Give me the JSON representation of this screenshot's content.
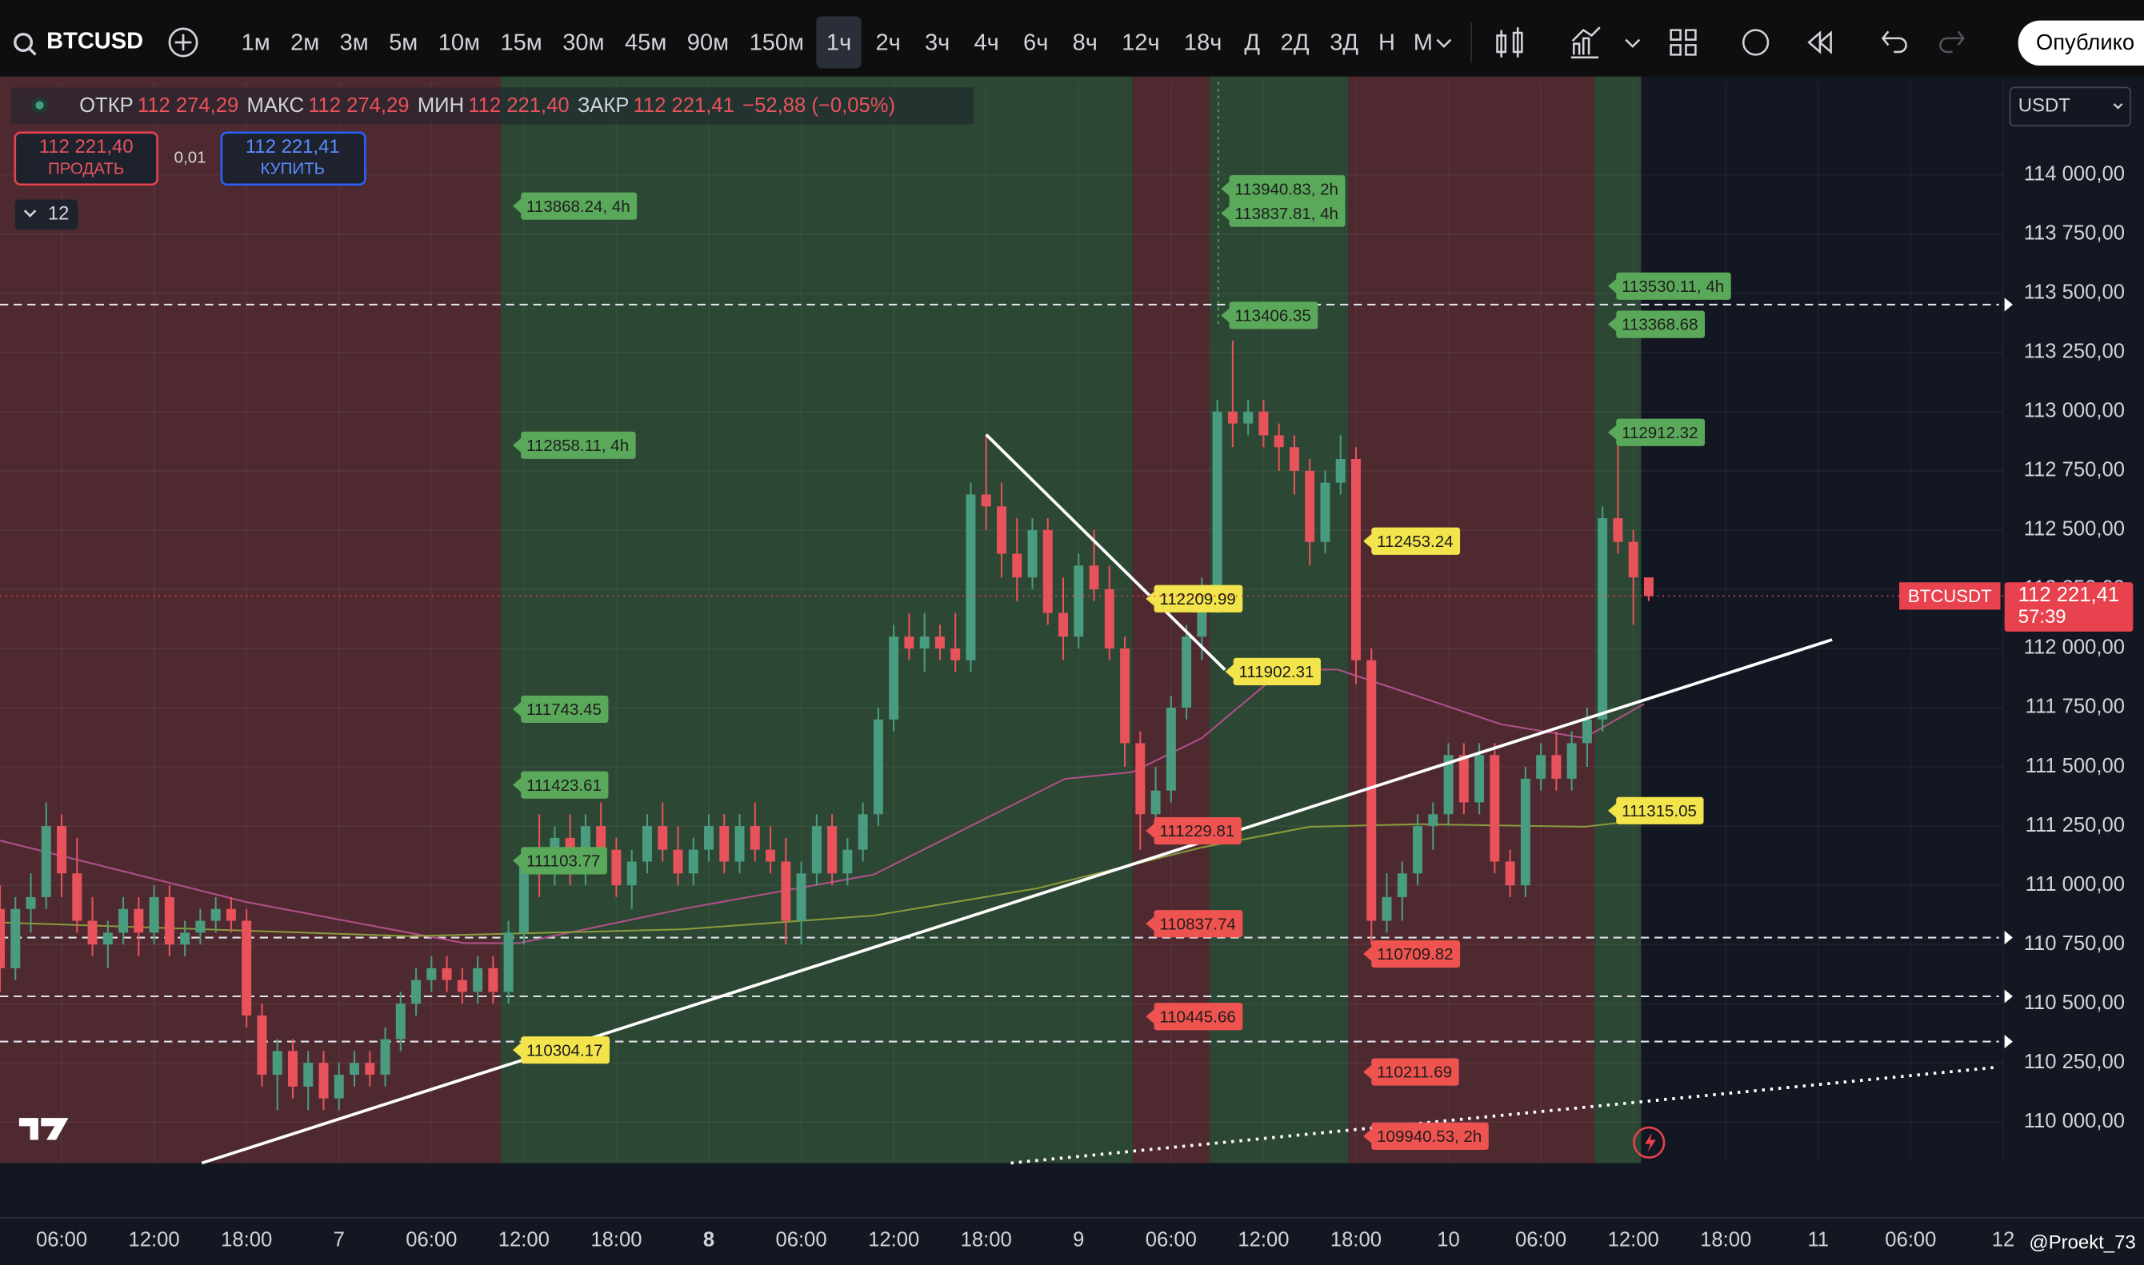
{
  "toolbar": {
    "symbol": "BTCUSD",
    "intervals": [
      "1м",
      "2м",
      "3м",
      "5м",
      "10м",
      "15м",
      "30м",
      "45м",
      "90м",
      "150м",
      "1ч",
      "2ч",
      "3ч",
      "4ч",
      "6ч",
      "8ч",
      "12ч",
      "18ч",
      "Д",
      "2Д",
      "3Д",
      "Н",
      "М"
    ],
    "selected": "1ч",
    "publish": "Опублико"
  },
  "legend": {
    "items": [
      {
        "label": "ОТКР",
        "value": "112 274,29"
      },
      {
        "label": "МАКС",
        "value": "112 274,29"
      },
      {
        "label": "МИН",
        "value": "112 221,40"
      },
      {
        "label": "ЗАКР",
        "value": "112 221,41"
      }
    ],
    "change": "−52,88 (−0,05%)",
    "sell_price": "112 221,40",
    "sell": "ПРОДАТЬ",
    "spread": "0,01",
    "buy_price": "112 221,41",
    "buy": "КУПИТЬ",
    "indicators_count": "12"
  },
  "currency": "USDT",
  "watermark": "@Proekt_73",
  "chart_data": {
    "type": "candlestick",
    "up_color": "#4a9c80",
    "down_color": "#e8525b",
    "xlim": [
      0,
      130
    ],
    "ylim": [
      109827,
      114392
    ],
    "grid": true,
    "yticks": [
      {
        "value": 110000,
        "label": "110 000,00"
      },
      {
        "value": 110250,
        "label": "110 250,00"
      },
      {
        "value": 110500,
        "label": "110 500,00"
      },
      {
        "value": 110750,
        "label": "110 750,00"
      },
      {
        "value": 111000,
        "label": "111 000,00"
      },
      {
        "value": 111250,
        "label": "111 250,00"
      },
      {
        "value": 111500,
        "label": "111 500,00"
      },
      {
        "value": 111750,
        "label": "111 750,00"
      },
      {
        "value": 112000,
        "label": "112 000,00"
      },
      {
        "value": 112250,
        "label": "112 250,00"
      },
      {
        "value": 112500,
        "label": "112 500,00"
      },
      {
        "value": 112750,
        "label": "112 750,00"
      },
      {
        "value": 113000,
        "label": "113 000,00"
      },
      {
        "value": 113250,
        "label": "113 250,00"
      },
      {
        "value": 113500,
        "label": "113 500,00"
      },
      {
        "value": 113750,
        "label": "113 750,00"
      },
      {
        "value": 114000,
        "label": "114 000,00"
      }
    ],
    "xticks": [
      {
        "value": 4,
        "label": "06:00"
      },
      {
        "value": 10,
        "label": "12:00"
      },
      {
        "value": 16,
        "label": "18:00"
      },
      {
        "value": 22,
        "label": "7"
      },
      {
        "value": 28,
        "label": "06:00"
      },
      {
        "value": 34,
        "label": "12:00"
      },
      {
        "value": 40,
        "label": "18:00"
      },
      {
        "value": 46,
        "label": "8"
      },
      {
        "value": 52,
        "label": "06:00"
      },
      {
        "value": 58,
        "label": "12:00"
      },
      {
        "value": 64,
        "label": "18:00"
      },
      {
        "value": 70,
        "label": "9"
      },
      {
        "value": 76,
        "label": "06:00"
      },
      {
        "value": 82,
        "label": "12:00"
      },
      {
        "value": 88,
        "label": "18:00"
      },
      {
        "value": 94,
        "label": "10"
      },
      {
        "value": 100,
        "label": "06:00"
      },
      {
        "value": 106,
        "label": "12:00"
      },
      {
        "value": 112,
        "label": "18:00"
      },
      {
        "value": 118,
        "label": "11"
      },
      {
        "value": 124,
        "label": "06:00"
      },
      {
        "value": 130,
        "label": "12"
      }
    ],
    "zones": [
      {
        "from": 0,
        "to": 32.5,
        "color": "#4e2a30"
      },
      {
        "from": 32.5,
        "to": 73.5,
        "color": "#2c4733"
      },
      {
        "from": 73.5,
        "to": 78.5,
        "color": "#4e2a30"
      },
      {
        "from": 78.5,
        "to": 87.5,
        "color": "#2c4733"
      },
      {
        "from": 87.5,
        "to": 103.5,
        "color": "#4e2a30"
      },
      {
        "from": 103.5,
        "to": 106.5,
        "color": "#2c4733"
      }
    ],
    "candles": [
      [
        110900,
        111000,
        110550,
        110650
      ],
      [
        110650,
        110950,
        110600,
        110900
      ],
      [
        110900,
        111050,
        110800,
        110950
      ],
      [
        110950,
        111350,
        110900,
        111250
      ],
      [
        111250,
        111300,
        110950,
        111050
      ],
      [
        111050,
        111200,
        110800,
        110850
      ],
      [
        110850,
        110950,
        110700,
        110750
      ],
      [
        110750,
        110850,
        110650,
        110800
      ],
      [
        110800,
        110950,
        110750,
        110900
      ],
      [
        110900,
        110950,
        110700,
        110800
      ],
      [
        110800,
        111000,
        110750,
        110950
      ],
      [
        110950,
        111000,
        110700,
        110750
      ],
      [
        110750,
        110850,
        110700,
        110800
      ],
      [
        110800,
        110900,
        110750,
        110850
      ],
      [
        110850,
        110950,
        110800,
        110900
      ],
      [
        110900,
        110950,
        110800,
        110850
      ],
      [
        110850,
        110900,
        110400,
        110450
      ],
      [
        110450,
        110500,
        110150,
        110200
      ],
      [
        110200,
        110350,
        110050,
        110300
      ],
      [
        110300,
        110350,
        110100,
        110150
      ],
      [
        110150,
        110300,
        110050,
        110250
      ],
      [
        110250,
        110300,
        110050,
        110100
      ],
      [
        110100,
        110250,
        110050,
        110200
      ],
      [
        110200,
        110300,
        110150,
        110250
      ],
      [
        110250,
        110300,
        110150,
        110200
      ],
      [
        110200,
        110400,
        110150,
        110350
      ],
      [
        110350,
        110550,
        110300,
        110500
      ],
      [
        110500,
        110650,
        110450,
        110600
      ],
      [
        110600,
        110700,
        110550,
        110650
      ],
      [
        110650,
        110700,
        110550,
        110600
      ],
      [
        110600,
        110650,
        110500,
        110550
      ],
      [
        110550,
        110700,
        110500,
        110650
      ],
      [
        110650,
        110700,
        110500,
        110550
      ],
      [
        110550,
        110850,
        110500,
        110800
      ],
      [
        110800,
        111150,
        110750,
        111100
      ],
      [
        111100,
        111300,
        110950,
        111050
      ],
      [
        111050,
        111250,
        111000,
        111200
      ],
      [
        111200,
        111300,
        111000,
        111050
      ],
      [
        111050,
        111300,
        111000,
        111250
      ],
      [
        111250,
        111350,
        111100,
        111150
      ],
      [
        111150,
        111200,
        110950,
        111000
      ],
      [
        111000,
        111150,
        110900,
        111100
      ],
      [
        111100,
        111300,
        111050,
        111250
      ],
      [
        111250,
        111350,
        111100,
        111150
      ],
      [
        111150,
        111250,
        111000,
        111050
      ],
      [
        111050,
        111200,
        111000,
        111150
      ],
      [
        111150,
        111300,
        111100,
        111250
      ],
      [
        111250,
        111300,
        111050,
        111100
      ],
      [
        111100,
        111300,
        111050,
        111250
      ],
      [
        111250,
        111350,
        111100,
        111150
      ],
      [
        111150,
        111250,
        111050,
        111100
      ],
      [
        111100,
        111200,
        110750,
        110850
      ],
      [
        110850,
        111100,
        110750,
        111050
      ],
      [
        111050,
        111300,
        111000,
        111250
      ],
      [
        111250,
        111300,
        111000,
        111050
      ],
      [
        111050,
        111200,
        111000,
        111150
      ],
      [
        111150,
        111350,
        111100,
        111300
      ],
      [
        111300,
        111750,
        111250,
        111700
      ],
      [
        111700,
        112100,
        111650,
        112050
      ],
      [
        112050,
        112150,
        111950,
        112000
      ],
      [
        112000,
        112150,
        111900,
        112050
      ],
      [
        112050,
        112100,
        111950,
        112000
      ],
      [
        112000,
        112150,
        111900,
        111950
      ],
      [
        111950,
        112700,
        111900,
        112650
      ],
      [
        112650,
        112900,
        112500,
        112600
      ],
      [
        112600,
        112700,
        112300,
        112400
      ],
      [
        112400,
        112550,
        112200,
        112300
      ],
      [
        112300,
        112550,
        112250,
        112500
      ],
      [
        112500,
        112550,
        112100,
        112150
      ],
      [
        112150,
        112300,
        111950,
        112050
      ],
      [
        112050,
        112400,
        112000,
        112350
      ],
      [
        112350,
        112500,
        112200,
        112250
      ],
      [
        112250,
        112350,
        111950,
        112000
      ],
      [
        112000,
        112050,
        111500,
        111600
      ],
      [
        111600,
        111650,
        111150,
        111300
      ],
      [
        111300,
        111500,
        111200,
        111400
      ],
      [
        111400,
        111800,
        111350,
        111750
      ],
      [
        111750,
        112100,
        111700,
        112050
      ],
      [
        112050,
        112300,
        111950,
        112200
      ],
      [
        112200,
        113050,
        112150,
        113000
      ],
      [
        113000,
        113300,
        112850,
        112950
      ],
      [
        112950,
        113050,
        112900,
        113000
      ],
      [
        113000,
        113050,
        112850,
        112900
      ],
      [
        112900,
        112950,
        112750,
        112850
      ],
      [
        112850,
        112900,
        112650,
        112750
      ],
      [
        112750,
        112800,
        112350,
        112450
      ],
      [
        112450,
        112750,
        112400,
        112700
      ],
      [
        112700,
        112900,
        112650,
        112800
      ],
      [
        112800,
        112850,
        111850,
        111950
      ],
      [
        111950,
        112000,
        110750,
        110850
      ],
      [
        110850,
        111050,
        110800,
        110950
      ],
      [
        110950,
        111100,
        110850,
        111050
      ],
      [
        111050,
        111300,
        111000,
        111250
      ],
      [
        111250,
        111350,
        111150,
        111300
      ],
      [
        111300,
        111600,
        111250,
        111550
      ],
      [
        111550,
        111600,
        111300,
        111350
      ],
      [
        111350,
        111600,
        111300,
        111550
      ],
      [
        111550,
        111600,
        111050,
        111100
      ],
      [
        111100,
        111150,
        110950,
        111000
      ],
      [
        111000,
        111500,
        110950,
        111450
      ],
      [
        111450,
        111600,
        111400,
        111550
      ],
      [
        111550,
        111650,
        111400,
        111450
      ],
      [
        111450,
        111650,
        111400,
        111600
      ],
      [
        111600,
        111750,
        111500,
        111700
      ],
      [
        111700,
        112600,
        111650,
        112550
      ],
      [
        112550,
        112900,
        112400,
        112450
      ],
      [
        112450,
        112500,
        112100,
        112300
      ],
      [
        112300,
        112300,
        112200,
        112221.41
      ]
    ],
    "indicators": [
      {
        "color": "#b0508a",
        "x": [
          0,
          16,
          30.1,
          33.7,
          44.3,
          56.7,
          62,
          69.1,
          73.5,
          78,
          83.3,
          86.8,
          92.1,
          97.4,
          102.8,
          106.7
        ],
        "values": [
          111189,
          110929,
          110756,
          110756,
          110900,
          111045,
          111218,
          111449,
          111478,
          111622,
          111911,
          111911,
          111796,
          111680,
          111622,
          111766
        ]
      },
      {
        "color": "#8a9a3c",
        "x": [
          0,
          26.6,
          44.3,
          56.7,
          67.3,
          78,
          85,
          92.1,
          102.8,
          106.7
        ],
        "values": [
          110843,
          110785,
          110814,
          110872,
          110987,
          111160,
          111247,
          111258,
          111247,
          111276
        ]
      }
    ],
    "trend_lines": [
      {
        "style": "solid",
        "x": [
          13.1,
          118.9
        ],
        "values": [
          109827,
          112037
        ]
      },
      {
        "style": "solid",
        "x": [
          64,
          79.5
        ],
        "values": [
          112903,
          111910
        ]
      },
      {
        "style": "dotted",
        "x": [
          65.6,
          129.5
        ],
        "values": [
          109827,
          110231
        ]
      }
    ],
    "hlines": [
      113452,
      110779,
      110531,
      110340
    ],
    "labels": [
      {
        "text": "113868.24, 4h",
        "price": 113868.24,
        "color": "#5aa85a"
      },
      {
        "text": "112858.11, 4h",
        "price": 112858.11,
        "color": "#5aa85a"
      },
      {
        "text": "111743.45",
        "price": 111743.45,
        "color": "#5aa85a"
      },
      {
        "text": "111423.61",
        "price": 111423.61,
        "color": "#5aa85a"
      },
      {
        "text": "111103.77",
        "price": 111103.77,
        "color": "#5aa85a"
      },
      {
        "text": "110304.17",
        "price": 110304.17,
        "color": "#f2e44a"
      },
      {
        "text": "113940.83, 2h",
        "price": 113940.83,
        "color": "#5aa85a"
      },
      {
        "text": "113837.81, 4h",
        "price": 113837.81,
        "color": "#5aa85a"
      },
      {
        "text": "113406.35",
        "price": 113406.35,
        "color": "#5aa85a"
      },
      {
        "text": "112209.99",
        "price": 112209.99,
        "color": "#f2e44a"
      },
      {
        "text": "111229.81",
        "price": 111229.81,
        "color": "#ef5350"
      },
      {
        "text": "110837.74",
        "price": 110837.74,
        "color": "#ef5350"
      },
      {
        "text": "110445.66",
        "price": 110445.66,
        "color": "#ef5350"
      },
      {
        "text": "111902.31",
        "price": 111902.31,
        "color": "#f2e44a"
      },
      {
        "text": "112453.24",
        "price": 112453.24,
        "color": "#f2e44a"
      },
      {
        "text": "110709.82",
        "price": 110709.82,
        "color": "#ef5350"
      },
      {
        "text": "110211.69",
        "price": 110211.69,
        "color": "#ef5350"
      },
      {
        "text": "109940.53, 2h",
        "price": 109940.53,
        "color": "#ef5350"
      },
      {
        "text": "113530.11, 4h",
        "price": 113530.11,
        "color": "#5aa85a"
      },
      {
        "text": "113368.68",
        "price": 113368.68,
        "color": "#5aa85a"
      },
      {
        "text": "112912.32",
        "price": 112912.32,
        "color": "#5aa85a"
      },
      {
        "text": "111315.05",
        "price": 111315.05,
        "color": "#f2e44a"
      }
    ],
    "last_price": {
      "symbol": "BTCUSDT",
      "value": 112221.41,
      "label": "112 221,41",
      "countdown": "57:39",
      "color": "#e8424e"
    }
  }
}
